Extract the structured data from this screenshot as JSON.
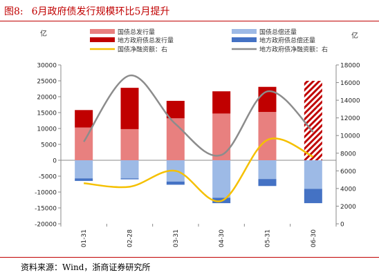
{
  "figure": {
    "label": "图8:",
    "title": "6月政府债发行规模环比5月提升",
    "source": "资料来源：Wind，浙商证券研究所"
  },
  "chart_data": {
    "type": "bar",
    "categories": [
      "01-31",
      "02-28",
      "03-31",
      "04-30",
      "05-31",
      "06-30"
    ],
    "y_left_unit": "亿",
    "y_right_unit": "亿",
    "ylim_left": [
      -20000,
      30000
    ],
    "ylim_right": [
      0,
      18000
    ],
    "yticks_left": [
      -20000,
      -15000,
      -10000,
      -5000,
      0,
      5000,
      10000,
      15000,
      20000,
      25000,
      30000
    ],
    "yticks_right": [
      0,
      2000,
      4000,
      6000,
      8000,
      10000,
      12000,
      14000,
      16000,
      18000
    ],
    "legend": [
      {
        "name": "国债总发行量",
        "kind": "bar",
        "color": "#e8807f"
      },
      {
        "name": "国债总偿还量",
        "kind": "bar",
        "color": "#9dbae6"
      },
      {
        "name": "地方政府债总发行量",
        "kind": "bar",
        "color": "#c00000"
      },
      {
        "name": "地方政府债总偿还量",
        "kind": "bar",
        "color": "#4472c4"
      },
      {
        "name": "国债净融资额：右",
        "kind": "line",
        "color": "#f5c000"
      },
      {
        "name": "地方政府债净融资额：右",
        "kind": "line",
        "color": "#8c8c8c"
      }
    ],
    "series": [
      {
        "name": "国债总发行量",
        "axis": "left",
        "values": [
          10300,
          9800,
          13200,
          14700,
          15200,
          16700
        ]
      },
      {
        "name": "地方政府债总发行量",
        "axis": "left",
        "values": [
          5500,
          13000,
          5500,
          7000,
          7900,
          8300
        ]
      },
      {
        "name": "国债总偿还量",
        "axis": "left",
        "values": [
          -5700,
          -5700,
          -6700,
          -11800,
          -5900,
          -9000
        ]
      },
      {
        "name": "地方政府债总偿还量",
        "axis": "left",
        "values": [
          -800,
          -300,
          -1000,
          -1700,
          -2200,
          -4500
        ]
      },
      {
        "name": "国债净融资额：右",
        "axis": "right",
        "values": [
          4600,
          4200,
          6000,
          2600,
          9500,
          7600
        ]
      },
      {
        "name": "地方政府债净融资额：右",
        "axis": "right",
        "values": [
          9300,
          16800,
          11300,
          7800,
          15000,
          10400
        ]
      }
    ],
    "hatched_category": "06-30",
    "grid": false
  }
}
